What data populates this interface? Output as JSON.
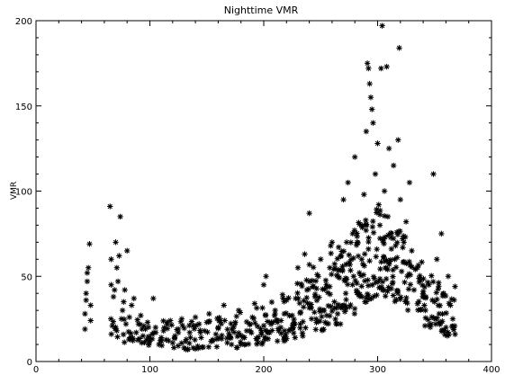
{
  "chart_data": {
    "type": "scatter",
    "title": "Nighttime VMR",
    "xlabel": "",
    "ylabel": "VMR",
    "xlim": [
      0,
      400
    ],
    "ylim": [
      0,
      200
    ],
    "x_ticks": [
      "0",
      "100",
      "200",
      "300",
      "400"
    ],
    "y_ticks": [
      "0",
      "50",
      "100",
      "150",
      "200"
    ],
    "marker": "asterisk",
    "marker_color": "#000000",
    "grid": false,
    "legend": "none",
    "series": [
      {
        "points": [
          [
            43,
            19
          ],
          [
            43,
            28
          ],
          [
            44,
            36
          ],
          [
            44,
            40
          ],
          [
            45,
            47
          ],
          [
            45,
            52
          ],
          [
            46,
            55
          ],
          [
            47,
            69
          ],
          [
            48,
            24
          ],
          [
            48,
            33
          ],
          [
            65,
            91
          ],
          [
            66,
            60
          ],
          [
            66,
            45
          ],
          [
            67,
            21
          ],
          [
            68,
            38
          ],
          [
            69,
            42
          ],
          [
            70,
            70
          ],
          [
            71,
            55
          ],
          [
            72,
            47
          ],
          [
            73,
            62
          ],
          [
            74,
            85
          ],
          [
            75,
            25
          ],
          [
            76,
            30
          ],
          [
            77,
            35
          ],
          [
            78,
            42
          ],
          [
            79,
            22
          ],
          [
            80,
            65
          ],
          [
            82,
            26
          ],
          [
            84,
            33
          ],
          [
            86,
            37
          ],
          [
            88,
            17
          ],
          [
            90,
            22
          ],
          [
            92,
            27
          ],
          [
            94,
            15
          ],
          [
            96,
            19
          ],
          [
            98,
            23
          ],
          [
            100,
            12
          ],
          [
            102,
            16
          ],
          [
            103,
            37
          ],
          [
            105,
            20
          ],
          [
            108,
            10
          ],
          [
            110,
            14
          ],
          [
            112,
            18
          ],
          [
            115,
            22
          ],
          [
            118,
            24
          ],
          [
            120,
            11
          ],
          [
            122,
            15
          ],
          [
            125,
            19
          ],
          [
            128,
            25
          ],
          [
            130,
            8
          ],
          [
            132,
            13
          ],
          [
            135,
            17
          ],
          [
            138,
            21
          ],
          [
            140,
            26
          ],
          [
            142,
            9
          ],
          [
            145,
            14
          ],
          [
            148,
            18
          ],
          [
            150,
            23
          ],
          [
            152,
            28
          ],
          [
            155,
            12
          ],
          [
            158,
            16
          ],
          [
            160,
            20
          ],
          [
            162,
            24
          ],
          [
            165,
            33
          ],
          [
            168,
            11
          ],
          [
            170,
            15
          ],
          [
            172,
            19
          ],
          [
            175,
            23
          ],
          [
            178,
            30
          ],
          [
            180,
            10
          ],
          [
            183,
            14
          ],
          [
            185,
            18
          ],
          [
            188,
            22
          ],
          [
            190,
            26
          ],
          [
            192,
            34
          ],
          [
            195,
            11
          ],
          [
            198,
            16
          ],
          [
            200,
            21
          ],
          [
            200,
            45
          ],
          [
            202,
            50
          ],
          [
            205,
            17
          ],
          [
            208,
            23
          ],
          [
            210,
            30
          ],
          [
            212,
            12
          ],
          [
            215,
            20
          ],
          [
            218,
            28
          ],
          [
            220,
            36
          ],
          [
            222,
            18
          ],
          [
            225,
            27
          ],
          [
            228,
            37
          ],
          [
            230,
            55
          ],
          [
            232,
            22
          ],
          [
            235,
            32
          ],
          [
            236,
            63
          ],
          [
            238,
            42
          ],
          [
            240,
            87
          ],
          [
            242,
            25
          ],
          [
            245,
            38
          ],
          [
            248,
            50
          ],
          [
            250,
            60
          ],
          [
            252,
            30
          ],
          [
            255,
            45
          ],
          [
            258,
            55
          ],
          [
            260,
            70
          ],
          [
            262,
            35
          ],
          [
            265,
            50
          ],
          [
            268,
            62
          ],
          [
            270,
            95
          ],
          [
            272,
            40
          ],
          [
            274,
            105
          ],
          [
            275,
            58
          ],
          [
            278,
            45
          ],
          [
            280,
            120
          ],
          [
            282,
            70
          ],
          [
            284,
            52
          ],
          [
            286,
            60
          ],
          [
            288,
            98
          ],
          [
            290,
            135
          ],
          [
            291,
            175
          ],
          [
            292,
            172
          ],
          [
            293,
            163
          ],
          [
            294,
            155
          ],
          [
            295,
            148
          ],
          [
            296,
            140
          ],
          [
            298,
            110
          ],
          [
            300,
            128
          ],
          [
            301,
            92
          ],
          [
            302,
            80
          ],
          [
            303,
            172
          ],
          [
            304,
            197
          ],
          [
            305,
            70
          ],
          [
            306,
            100
          ],
          [
            308,
            173
          ],
          [
            309,
            85
          ],
          [
            310,
            125
          ],
          [
            312,
            75
          ],
          [
            314,
            115
          ],
          [
            315,
            60
          ],
          [
            318,
            130
          ],
          [
            319,
            184
          ],
          [
            320,
            95
          ],
          [
            322,
            72
          ],
          [
            325,
            82
          ],
          [
            326,
            50
          ],
          [
            328,
            105
          ],
          [
            330,
            65
          ],
          [
            332,
            42
          ],
          [
            335,
            55
          ],
          [
            338,
            48
          ],
          [
            340,
            38
          ],
          [
            342,
            30
          ],
          [
            345,
            45
          ],
          [
            347,
            22
          ],
          [
            349,
            110
          ],
          [
            350,
            35
          ],
          [
            352,
            60
          ],
          [
            354,
            28
          ],
          [
            356,
            75
          ],
          [
            358,
            40
          ],
          [
            360,
            20
          ],
          [
            362,
            50
          ],
          [
            364,
            33
          ],
          [
            366,
            25
          ],
          [
            368,
            16
          ],
          [
            368,
            44
          ]
        ]
      }
    ],
    "bands": [
      [
        65,
        75,
        14,
        27
      ],
      [
        75,
        90,
        11,
        25
      ],
      [
        90,
        110,
        9,
        23
      ],
      [
        110,
        130,
        8,
        24
      ],
      [
        130,
        150,
        7,
        25
      ],
      [
        150,
        170,
        8,
        26
      ],
      [
        170,
        190,
        8,
        29
      ],
      [
        190,
        200,
        10,
        33
      ],
      [
        200,
        212,
        11,
        36
      ],
      [
        212,
        225,
        12,
        40
      ],
      [
        225,
        240,
        14,
        48
      ],
      [
        240,
        255,
        17,
        58
      ],
      [
        255,
        268,
        22,
        68
      ],
      [
        268,
        280,
        28,
        78
      ],
      [
        280,
        295,
        35,
        85
      ],
      [
        295,
        310,
        38,
        90
      ],
      [
        310,
        325,
        35,
        80
      ],
      [
        325,
        340,
        30,
        60
      ],
      [
        340,
        355,
        20,
        55
      ],
      [
        355,
        368,
        15,
        45
      ]
    ]
  }
}
